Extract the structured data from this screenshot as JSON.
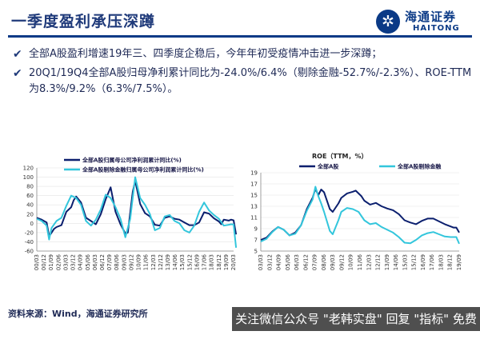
{
  "header": {
    "title": "一季度盈利承压深蹲"
  },
  "logo": {
    "cn": "海通证券",
    "en": "HAITONG",
    "mark_icon": "haitong-logo-icon"
  },
  "bullets": [
    "全部A股盈利增速19年三、四季度企稳后，今年年初受疫情冲击进一步深蹲；",
    "20Q1/19Q4全部A股归母净利累计同比为-24.0%/6.4%（剔除金融-52.7%/-2.3%）、ROE-TTM为8.3%/9.2%（6.3%/7.5%）。"
  ],
  "footer": {
    "source": "资料来源：Wind，海通证券研究所",
    "watermark": "关注微信公众号 \"老韩实盘\" 回复 \"指标\" 免费领取"
  },
  "colors": {
    "navy": "#0b1f6e",
    "cyan": "#33c6dc",
    "brand": "#0b3a86"
  },
  "chart_data": [
    {
      "type": "line",
      "title": "",
      "legend_position": "top",
      "x_tick_labels": [
        "00/03",
        "00/12",
        "01/09",
        "02/06",
        "03/03",
        "03/12",
        "04/09",
        "05/06",
        "06/03",
        "06/12",
        "07/09",
        "08/06",
        "09/03",
        "09/12",
        "10/09",
        "11/06",
        "12/03",
        "12/12",
        "13/09",
        "14/06",
        "15/03",
        "15/12",
        "16/09",
        "17/06",
        "18/03",
        "18/12",
        "19/09",
        "20/03"
      ],
      "x_start": 2000.0,
      "x_end": 2020.0,
      "ylim": [
        -60,
        120
      ],
      "yticks": [
        -60,
        -40,
        -20,
        0,
        20,
        40,
        60,
        80,
        100,
        120
      ],
      "series": [
        {
          "name": "全部A股归属母公司净利润累计同比(%)",
          "color": "#0b1f6e",
          "points": [
            [
              2000.0,
              12
            ],
            [
              2000.5,
              8
            ],
            [
              2001.0,
              2
            ],
            [
              2001.25,
              -28
            ],
            [
              2001.5,
              -20
            ],
            [
              2001.75,
              -12
            ],
            [
              2002.0,
              -8
            ],
            [
              2002.5,
              -4
            ],
            [
              2003.0,
              25
            ],
            [
              2003.5,
              35
            ],
            [
              2003.75,
              50
            ],
            [
              2004.0,
              58
            ],
            [
              2004.5,
              45
            ],
            [
              2005.0,
              12
            ],
            [
              2005.5,
              5
            ],
            [
              2006.0,
              -2
            ],
            [
              2006.5,
              20
            ],
            [
              2007.0,
              52
            ],
            [
              2007.5,
              78
            ],
            [
              2008.0,
              25
            ],
            [
              2008.5,
              -2
            ],
            [
              2009.0,
              -22
            ],
            [
              2009.25,
              -20
            ],
            [
              2009.75,
              68
            ],
            [
              2010.0,
              92
            ],
            [
              2010.5,
              42
            ],
            [
              2011.0,
              22
            ],
            [
              2011.5,
              15
            ],
            [
              2012.0,
              -3
            ],
            [
              2012.5,
              -5
            ],
            [
              2013.0,
              12
            ],
            [
              2013.5,
              15
            ],
            [
              2014.0,
              10
            ],
            [
              2014.5,
              8
            ],
            [
              2015.0,
              2
            ],
            [
              2015.5,
              -4
            ],
            [
              2016.0,
              -4
            ],
            [
              2016.5,
              2
            ],
            [
              2017.0,
              24
            ],
            [
              2017.5,
              21
            ],
            [
              2018.0,
              11
            ],
            [
              2018.5,
              4
            ],
            [
              2018.75,
              -2
            ],
            [
              2019.0,
              8
            ],
            [
              2019.5,
              6
            ],
            [
              2019.75,
              8
            ],
            [
              2020.0,
              6.4
            ],
            [
              2020.25,
              -24
            ]
          ]
        },
        {
          "name": "全部A股剔除金融归属母公司净利润累计同比(%)",
          "color": "#33c6dc",
          "points": [
            [
              2000.0,
              10
            ],
            [
              2000.5,
              5
            ],
            [
              2001.0,
              -5
            ],
            [
              2001.25,
              -35
            ],
            [
              2001.5,
              -10
            ],
            [
              2002.0,
              5
            ],
            [
              2002.5,
              12
            ],
            [
              2003.0,
              38
            ],
            [
              2003.5,
              60
            ],
            [
              2004.0,
              55
            ],
            [
              2004.5,
              40
            ],
            [
              2005.0,
              5
            ],
            [
              2005.5,
              -5
            ],
            [
              2006.0,
              8
            ],
            [
              2006.5,
              30
            ],
            [
              2007.0,
              62
            ],
            [
              2007.5,
              55
            ],
            [
              2008.0,
              35
            ],
            [
              2008.5,
              10
            ],
            [
              2009.0,
              -30
            ],
            [
              2009.5,
              10
            ],
            [
              2010.0,
              100
            ],
            [
              2010.5,
              55
            ],
            [
              2011.0,
              40
            ],
            [
              2011.5,
              20
            ],
            [
              2012.0,
              -15
            ],
            [
              2012.5,
              -10
            ],
            [
              2013.0,
              15
            ],
            [
              2013.5,
              18
            ],
            [
              2014.0,
              5
            ],
            [
              2014.5,
              0
            ],
            [
              2015.0,
              -15
            ],
            [
              2015.5,
              -20
            ],
            [
              2016.0,
              -5
            ],
            [
              2016.5,
              25
            ],
            [
              2017.0,
              45
            ],
            [
              2017.5,
              28
            ],
            [
              2018.0,
              18
            ],
            [
              2018.5,
              10
            ],
            [
              2019.0,
              -5
            ],
            [
              2019.5,
              -3
            ],
            [
              2019.75,
              -2
            ],
            [
              2020.0,
              -2.3
            ],
            [
              2020.25,
              -52.7
            ]
          ]
        }
      ]
    },
    {
      "type": "line",
      "title": "ROE（TTM，%）",
      "legend_position": "top",
      "x_tick_labels": [
        "03/03",
        "03/12",
        "04/09",
        "05/06",
        "06/03",
        "06/12",
        "07/09",
        "08/06",
        "09/03",
        "09/12",
        "10/09",
        "11/06",
        "12/03",
        "12/12",
        "13/09",
        "14/06",
        "15/03",
        "15/12",
        "16/09",
        "17/06",
        "18/03",
        "18/12",
        "19/09"
      ],
      "x_start": 2003.0,
      "x_end": 2020.25,
      "ylim": [
        5,
        19
      ],
      "yticks": [
        5,
        7,
        9,
        11,
        13,
        15,
        17,
        19
      ],
      "series": [
        {
          "name": "全部A股",
          "color": "#0b1f6e",
          "points": [
            [
              2003.0,
              7.0
            ],
            [
              2003.5,
              7.4
            ],
            [
              2004.0,
              8.5
            ],
            [
              2004.5,
              9.3
            ],
            [
              2005.0,
              8.8
            ],
            [
              2005.5,
              7.8
            ],
            [
              2006.0,
              8.3
            ],
            [
              2006.5,
              9.6
            ],
            [
              2007.0,
              12.5
            ],
            [
              2007.5,
              14.5
            ],
            [
              2007.75,
              16.1
            ],
            [
              2008.0,
              15.0
            ],
            [
              2008.25,
              16.0
            ],
            [
              2008.5,
              15.5
            ],
            [
              2009.0,
              12.5
            ],
            [
              2009.25,
              12.0
            ],
            [
              2009.75,
              13.5
            ],
            [
              2010.0,
              14.5
            ],
            [
              2010.5,
              15.3
            ],
            [
              2011.0,
              15.6
            ],
            [
              2011.25,
              15.8
            ],
            [
              2011.75,
              14.8
            ],
            [
              2012.0,
              14.0
            ],
            [
              2012.5,
              13.3
            ],
            [
              2013.0,
              13.6
            ],
            [
              2013.5,
              13.0
            ],
            [
              2014.0,
              12.6
            ],
            [
              2014.5,
              12.3
            ],
            [
              2015.0,
              11.6
            ],
            [
              2015.5,
              10.5
            ],
            [
              2016.0,
              10.1
            ],
            [
              2016.5,
              9.8
            ],
            [
              2017.0,
              10.4
            ],
            [
              2017.5,
              10.8
            ],
            [
              2018.0,
              10.8
            ],
            [
              2018.5,
              10.3
            ],
            [
              2019.0,
              9.8
            ],
            [
              2019.5,
              9.4
            ],
            [
              2019.75,
              9.2
            ],
            [
              2020.0,
              9.2
            ],
            [
              2020.25,
              8.3
            ]
          ]
        },
        {
          "name": "全部A股剔除金融",
          "color": "#33c6dc",
          "points": [
            [
              2003.0,
              6.7
            ],
            [
              2003.5,
              7.2
            ],
            [
              2004.0,
              8.4
            ],
            [
              2004.5,
              9.3
            ],
            [
              2005.0,
              8.8
            ],
            [
              2005.5,
              7.8
            ],
            [
              2006.0,
              8.1
            ],
            [
              2006.5,
              9.6
            ],
            [
              2007.0,
              12.2
            ],
            [
              2007.5,
              14.2
            ],
            [
              2007.75,
              16.5
            ],
            [
              2008.0,
              14.8
            ],
            [
              2008.25,
              13.5
            ],
            [
              2008.5,
              12.0
            ],
            [
              2009.0,
              8.6
            ],
            [
              2009.25,
              8.0
            ],
            [
              2009.75,
              10.5
            ],
            [
              2010.0,
              12.0
            ],
            [
              2010.5,
              12.7
            ],
            [
              2011.0,
              12.5
            ],
            [
              2011.5,
              12.0
            ],
            [
              2012.0,
              10.5
            ],
            [
              2012.5,
              9.8
            ],
            [
              2013.0,
              10.0
            ],
            [
              2013.5,
              9.3
            ],
            [
              2014.0,
              8.8
            ],
            [
              2014.5,
              8.3
            ],
            [
              2015.0,
              7.5
            ],
            [
              2015.5,
              6.5
            ],
            [
              2016.0,
              6.4
            ],
            [
              2016.5,
              7.0
            ],
            [
              2017.0,
              7.8
            ],
            [
              2017.5,
              8.2
            ],
            [
              2018.0,
              8.4
            ],
            [
              2018.5,
              8.0
            ],
            [
              2019.0,
              7.6
            ],
            [
              2019.5,
              7.5
            ],
            [
              2019.75,
              7.5
            ],
            [
              2020.0,
              7.5
            ],
            [
              2020.25,
              6.3
            ]
          ]
        }
      ]
    }
  ]
}
